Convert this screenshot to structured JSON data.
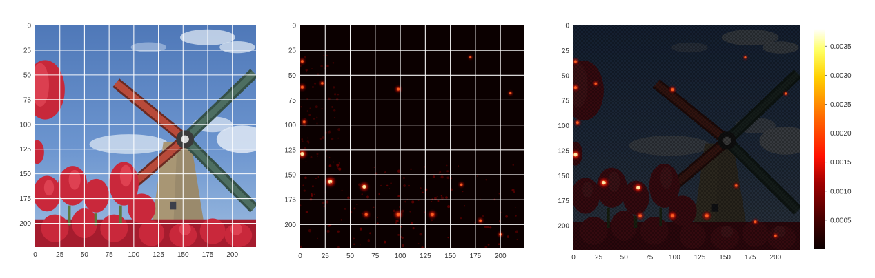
{
  "chart_data": [
    {
      "type": "image",
      "content": "photograph of a windmill with red tulips under a blue sky",
      "x_ticks": [
        "0",
        "25",
        "50",
        "75",
        "100",
        "125",
        "150",
        "175",
        "200"
      ],
      "y_ticks": [
        "0",
        "25",
        "50",
        "75",
        "100",
        "125",
        "150",
        "175",
        "200"
      ],
      "xlim": [
        0,
        224
      ],
      "ylim": [
        224,
        0
      ],
      "grid": true,
      "grid_color": "#ffffff"
    },
    {
      "type": "heatmap",
      "content": "saliency map, mostly black with sparse red hot spots",
      "x_ticks": [
        "0",
        "25",
        "50",
        "75",
        "100",
        "125",
        "150",
        "175",
        "200"
      ],
      "y_ticks": [
        "0",
        "25",
        "50",
        "75",
        "100",
        "125",
        "150",
        "175",
        "200"
      ],
      "xlim": [
        0,
        224
      ],
      "ylim": [
        224,
        0
      ],
      "grid": true,
      "grid_color": "#ffffff",
      "colormap": "hot",
      "hot_spots": [
        {
          "x": 2,
          "y": 129,
          "level": 0.9
        },
        {
          "x": 30,
          "y": 157,
          "level": 1.0
        },
        {
          "x": 64,
          "y": 162,
          "level": 0.85
        },
        {
          "x": 98,
          "y": 190,
          "level": 0.75
        },
        {
          "x": 132,
          "y": 190,
          "level": 0.7
        },
        {
          "x": 66,
          "y": 190,
          "level": 0.6
        },
        {
          "x": 98,
          "y": 64,
          "level": 0.5
        },
        {
          "x": 2,
          "y": 62,
          "level": 0.55
        },
        {
          "x": 2,
          "y": 36,
          "level": 0.45
        },
        {
          "x": 4,
          "y": 97,
          "level": 0.45
        },
        {
          "x": 22,
          "y": 58,
          "level": 0.35
        },
        {
          "x": 180,
          "y": 196,
          "level": 0.4
        },
        {
          "x": 161,
          "y": 160,
          "level": 0.35
        },
        {
          "x": 200,
          "y": 210,
          "level": 0.35
        },
        {
          "x": 210,
          "y": 68,
          "level": 0.25
        },
        {
          "x": 170,
          "y": 32,
          "level": 0.2
        }
      ]
    },
    {
      "type": "heatmap",
      "content": "saliency overlay on darkened photograph",
      "x_ticks": [
        "0",
        "25",
        "50",
        "75",
        "100",
        "125",
        "150",
        "175",
        "200"
      ],
      "y_ticks": [
        "0",
        "25",
        "50",
        "75",
        "100",
        "125",
        "150",
        "175",
        "200"
      ],
      "xlim": [
        0,
        224
      ],
      "ylim": [
        224,
        0
      ],
      "grid": false,
      "colormap": "hot",
      "colorbar": {
        "ticks": [
          "0.0005",
          "0.0010",
          "0.0015",
          "0.0020",
          "0.0025",
          "0.0030",
          "0.0035"
        ],
        "tick_values": [
          0.0005,
          0.001,
          0.0015,
          0.002,
          0.0025,
          0.003,
          0.0035
        ],
        "range": [
          0.0,
          0.0038
        ]
      }
    }
  ]
}
